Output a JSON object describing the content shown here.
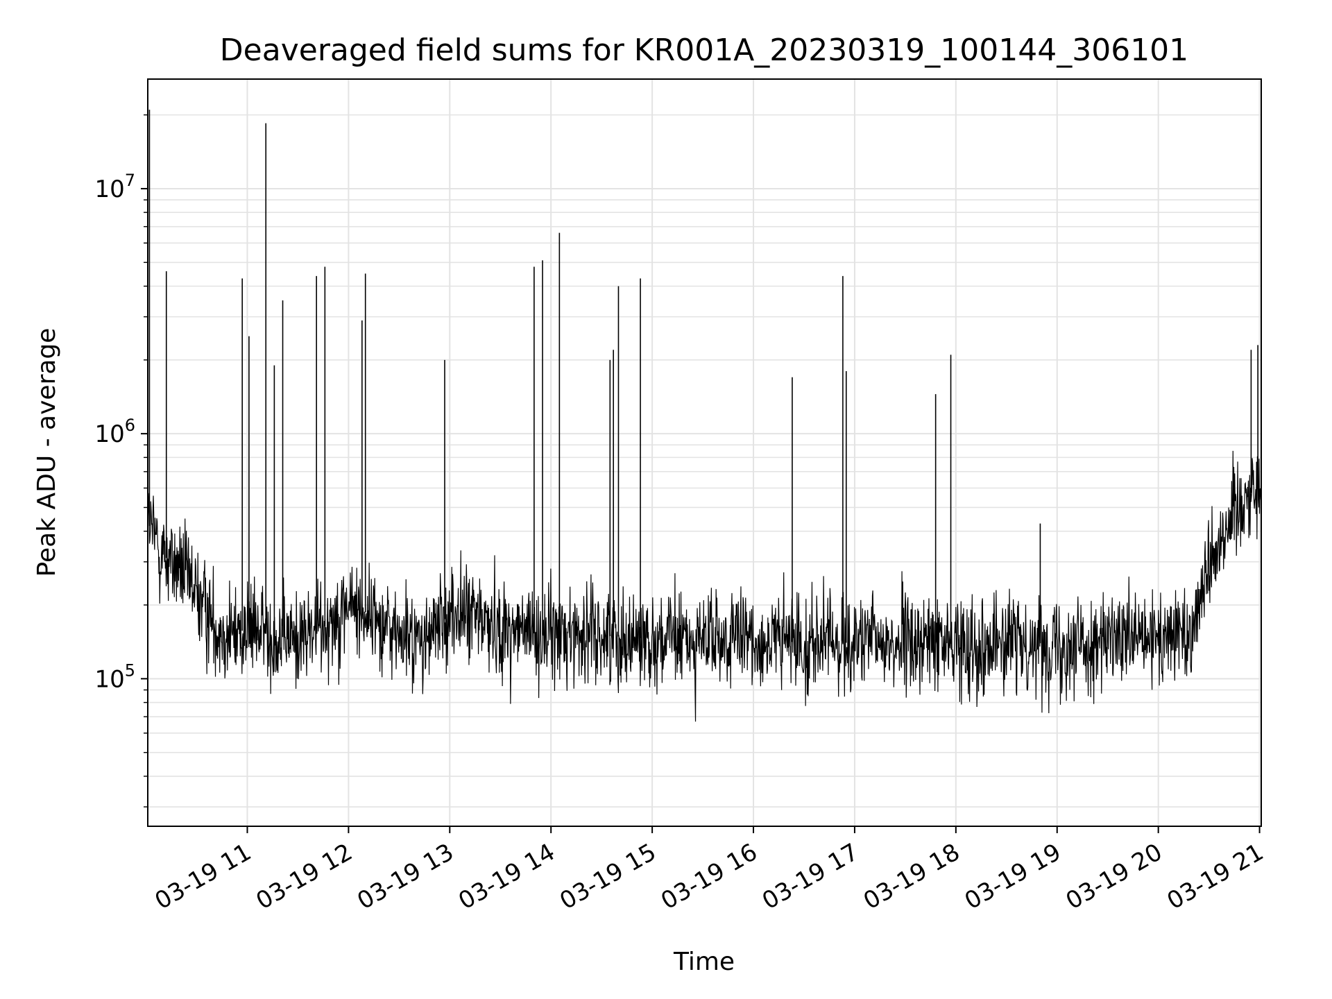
{
  "chart_data": {
    "type": "line",
    "title": "Deaveraged field sums for KR001A_20230319_100144_306101",
    "xlabel": "Time",
    "ylabel": "Peak ADU - average",
    "y_scale": "log",
    "ylim": [
      25000,
      28000000
    ],
    "xlim": [
      "2023-03-19 10:01",
      "2023-03-19 21:01"
    ],
    "grid": true,
    "line_color": "#000000",
    "x_ticks": [
      {
        "value": "2023-03-19 11:00",
        "label": "03-19 11"
      },
      {
        "value": "2023-03-19 12:00",
        "label": "03-19 12"
      },
      {
        "value": "2023-03-19 13:00",
        "label": "03-19 13"
      },
      {
        "value": "2023-03-19 14:00",
        "label": "03-19 14"
      },
      {
        "value": "2023-03-19 15:00",
        "label": "03-19 15"
      },
      {
        "value": "2023-03-19 16:00",
        "label": "03-19 16"
      },
      {
        "value": "2023-03-19 17:00",
        "label": "03-19 17"
      },
      {
        "value": "2023-03-19 18:00",
        "label": "03-19 18"
      },
      {
        "value": "2023-03-19 19:00",
        "label": "03-19 19"
      },
      {
        "value": "2023-03-19 20:00",
        "label": "03-19 20"
      },
      {
        "value": "2023-03-19 21:00",
        "label": "03-19 21"
      }
    ],
    "y_ticks": [
      {
        "value": 100000,
        "base": "10",
        "exp": "5"
      },
      {
        "value": 1000000,
        "base": "10",
        "exp": "6"
      },
      {
        "value": 10000000,
        "base": "10",
        "exp": "7"
      }
    ],
    "series": [
      {
        "x": [
          "2023-03-19 10:00",
          "2023-03-19 10:10",
          "2023-03-19 10:20",
          "2023-03-19 10:30",
          "2023-03-19 10:40",
          "2023-03-19 10:50",
          "2023-03-19 11:00",
          "2023-03-19 11:15",
          "2023-03-19 11:30",
          "2023-03-19 11:45",
          "2023-03-19 12:00",
          "2023-03-19 12:15",
          "2023-03-19 12:30",
          "2023-03-19 12:45",
          "2023-03-19 13:00",
          "2023-03-19 13:15",
          "2023-03-19 13:30",
          "2023-03-19 13:45",
          "2023-03-19 14:00",
          "2023-03-19 14:15",
          "2023-03-19 14:30",
          "2023-03-19 14:45",
          "2023-03-19 15:00",
          "2023-03-19 15:30",
          "2023-03-19 16:00",
          "2023-03-19 16:30",
          "2023-03-19 17:00",
          "2023-03-19 17:30",
          "2023-03-19 18:00",
          "2023-03-19 18:30",
          "2023-03-19 19:00",
          "2023-03-19 19:30",
          "2023-03-19 20:00",
          "2023-03-19 20:20",
          "2023-03-19 20:30",
          "2023-03-19 20:40",
          "2023-03-19 20:50",
          "2023-03-19 21:00"
        ],
        "y": [
          450000,
          320000,
          280000,
          220000,
          170000,
          150000,
          160000,
          150000,
          145000,
          165000,
          200000,
          180000,
          150000,
          140000,
          185000,
          180000,
          160000,
          155000,
          150000,
          155000,
          150000,
          148000,
          145000,
          143000,
          142000,
          141000,
          140000,
          140000,
          139000,
          139000,
          140000,
          140000,
          142000,
          160000,
          300000,
          420000,
          550000,
          600000
        ]
      }
    ],
    "spikes": [
      {
        "x": "2023-03-19 10:02",
        "y": 21000000
      },
      {
        "x": "2023-03-19 10:12",
        "y": 4600000
      },
      {
        "x": "2023-03-19 10:57",
        "y": 4300000
      },
      {
        "x": "2023-03-19 11:01",
        "y": 2500000
      },
      {
        "x": "2023-03-19 11:11",
        "y": 18500000
      },
      {
        "x": "2023-03-19 11:16",
        "y": 1900000
      },
      {
        "x": "2023-03-19 11:21",
        "y": 3500000
      },
      {
        "x": "2023-03-19 11:41",
        "y": 4400000
      },
      {
        "x": "2023-03-19 11:46",
        "y": 4800000
      },
      {
        "x": "2023-03-19 12:08",
        "y": 2900000
      },
      {
        "x": "2023-03-19 12:10",
        "y": 4500000
      },
      {
        "x": "2023-03-19 12:57",
        "y": 2000000
      },
      {
        "x": "2023-03-19 13:50",
        "y": 4800000
      },
      {
        "x": "2023-03-19 13:55",
        "y": 5100000
      },
      {
        "x": "2023-03-19 14:05",
        "y": 6600000
      },
      {
        "x": "2023-03-19 14:35",
        "y": 2000000
      },
      {
        "x": "2023-03-19 14:37",
        "y": 2200000
      },
      {
        "x": "2023-03-19 14:40",
        "y": 4000000
      },
      {
        "x": "2023-03-19 14:53",
        "y": 4300000
      },
      {
        "x": "2023-03-19 16:23",
        "y": 1700000
      },
      {
        "x": "2023-03-19 16:53",
        "y": 4400000
      },
      {
        "x": "2023-03-19 16:55",
        "y": 1800000
      },
      {
        "x": "2023-03-19 17:48",
        "y": 1450000
      },
      {
        "x": "2023-03-19 17:57",
        "y": 2100000
      },
      {
        "x": "2023-03-19 18:50",
        "y": 430000
      },
      {
        "x": "2023-03-19 20:55",
        "y": 2200000
      },
      {
        "x": "2023-03-19 20:59",
        "y": 2300000
      }
    ]
  }
}
